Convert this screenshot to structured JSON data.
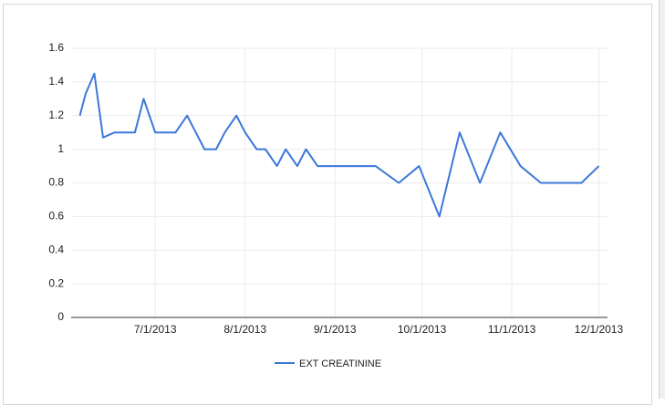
{
  "chart_data": {
    "type": "line",
    "x": [
      "6/5/2013",
      "6/7/2013",
      "6/10/2013",
      "6/13/2013",
      "6/17/2013",
      "6/24/2013",
      "6/27/2013",
      "7/1/2013",
      "7/8/2013",
      "7/12/2013",
      "7/15/2013",
      "7/18/2013",
      "7/22/2013",
      "7/25/2013",
      "7/29/2013",
      "8/1/2013",
      "8/5/2013",
      "8/8/2013",
      "8/12/2013",
      "8/15/2013",
      "8/19/2013",
      "8/22/2013",
      "8/26/2013",
      "9/15/2013",
      "9/23/2013",
      "9/30/2013",
      "10/7/2013",
      "10/14/2013",
      "10/21/2013",
      "10/28/2013",
      "11/4/2013",
      "11/11/2013",
      "11/25/2013",
      "12/1/2013"
    ],
    "series": [
      {
        "name": "EXT CREATININE",
        "color": "#3c78d8",
        "values": [
          1.2,
          1.33,
          1.45,
          1.07,
          1.1,
          1.1,
          1.3,
          1.1,
          1.1,
          1.2,
          1.1,
          1.0,
          1.0,
          1.1,
          1.2,
          1.1,
          1.0,
          1.0,
          0.9,
          1.0,
          0.9,
          1.0,
          0.9,
          0.9,
          0.8,
          0.9,
          0.6,
          1.1,
          0.8,
          1.1,
          0.9,
          0.8,
          0.8,
          0.9
        ]
      }
    ],
    "xlim": [
      "6/2/2013",
      "12/4/2013"
    ],
    "xticks": [
      "7/1/2013",
      "8/1/2013",
      "9/1/2013",
      "10/1/2013",
      "11/1/2013",
      "12/1/2013"
    ],
    "ylim": [
      0,
      1.6
    ],
    "yticks": [
      0,
      0.2,
      0.4,
      0.6,
      0.8,
      1,
      1.2,
      1.4,
      1.6
    ],
    "grid": true,
    "legend": "bottom"
  }
}
